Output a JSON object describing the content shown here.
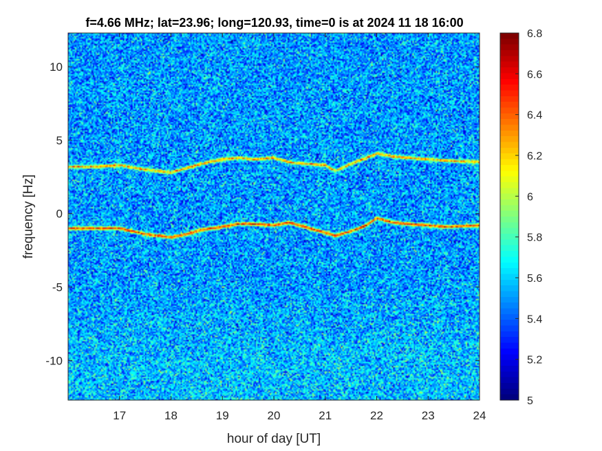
{
  "chart_data": {
    "type": "heatmap",
    "title": "f=4.66 MHz;  lat=23.96; long=120.93, time=0 is at 2024 11 18 16:00",
    "xlabel": "hour of day [UT]",
    "ylabel": "frequency [Hz]",
    "xlim": [
      16,
      24
    ],
    "ylim": [
      -12.7,
      12.3
    ],
    "xticks": [
      17,
      18,
      19,
      20,
      21,
      22,
      23,
      24
    ],
    "yticks": [
      -10,
      -5,
      0,
      5,
      10
    ],
    "xtick_labels": [
      "17",
      "18",
      "19",
      "20",
      "21",
      "22",
      "23",
      "24"
    ],
    "ytick_labels": [
      "-10",
      "-5",
      "0",
      "5",
      "10"
    ],
    "colormap": "jet",
    "clim": [
      5,
      6.8
    ],
    "colorbar_ticks": [
      5,
      5.2,
      5.4,
      5.6,
      5.8,
      6,
      6.2,
      6.4,
      6.6,
      6.8
    ],
    "colorbar_tick_labels": [
      "5",
      "5.2",
      "5.4",
      "5.6",
      "5.8",
      "6",
      "6.2",
      "6.4",
      "6.6",
      "6.8"
    ],
    "background_level": 5.5,
    "traces": [
      {
        "hours": [
          16.1,
          16.5,
          17.0,
          17.5,
          18.0,
          18.3,
          18.6,
          19.0,
          19.3,
          19.6,
          20.0,
          20.3,
          20.6,
          21.0,
          21.2,
          21.5,
          21.8,
          22.0,
          22.3,
          22.6,
          23.0,
          23.4,
          24.0
        ],
        "freq_hz": [
          -1.0,
          -1.0,
          -1.0,
          -1.4,
          -1.6,
          -1.4,
          -1.1,
          -0.9,
          -0.7,
          -0.7,
          -0.8,
          -0.6,
          -0.9,
          -1.3,
          -1.5,
          -1.2,
          -0.8,
          -0.3,
          -0.6,
          -0.7,
          -0.8,
          -0.9,
          -0.8
        ],
        "level": 6.5
      },
      {
        "hours": [
          16.1,
          16.5,
          17.0,
          17.5,
          18.0,
          18.3,
          18.6,
          19.0,
          19.3,
          19.6,
          20.0,
          20.3,
          20.6,
          21.0,
          21.2,
          21.5,
          21.8,
          22.0,
          22.3,
          22.6,
          23.0,
          23.4,
          24.0
        ],
        "freq_hz": [
          3.2,
          3.2,
          3.3,
          3.0,
          2.8,
          3.1,
          3.4,
          3.7,
          3.8,
          3.7,
          3.8,
          3.5,
          3.4,
          3.3,
          2.9,
          3.4,
          3.8,
          4.1,
          3.9,
          3.8,
          3.7,
          3.6,
          3.5
        ],
        "level": 6.3
      }
    ]
  }
}
